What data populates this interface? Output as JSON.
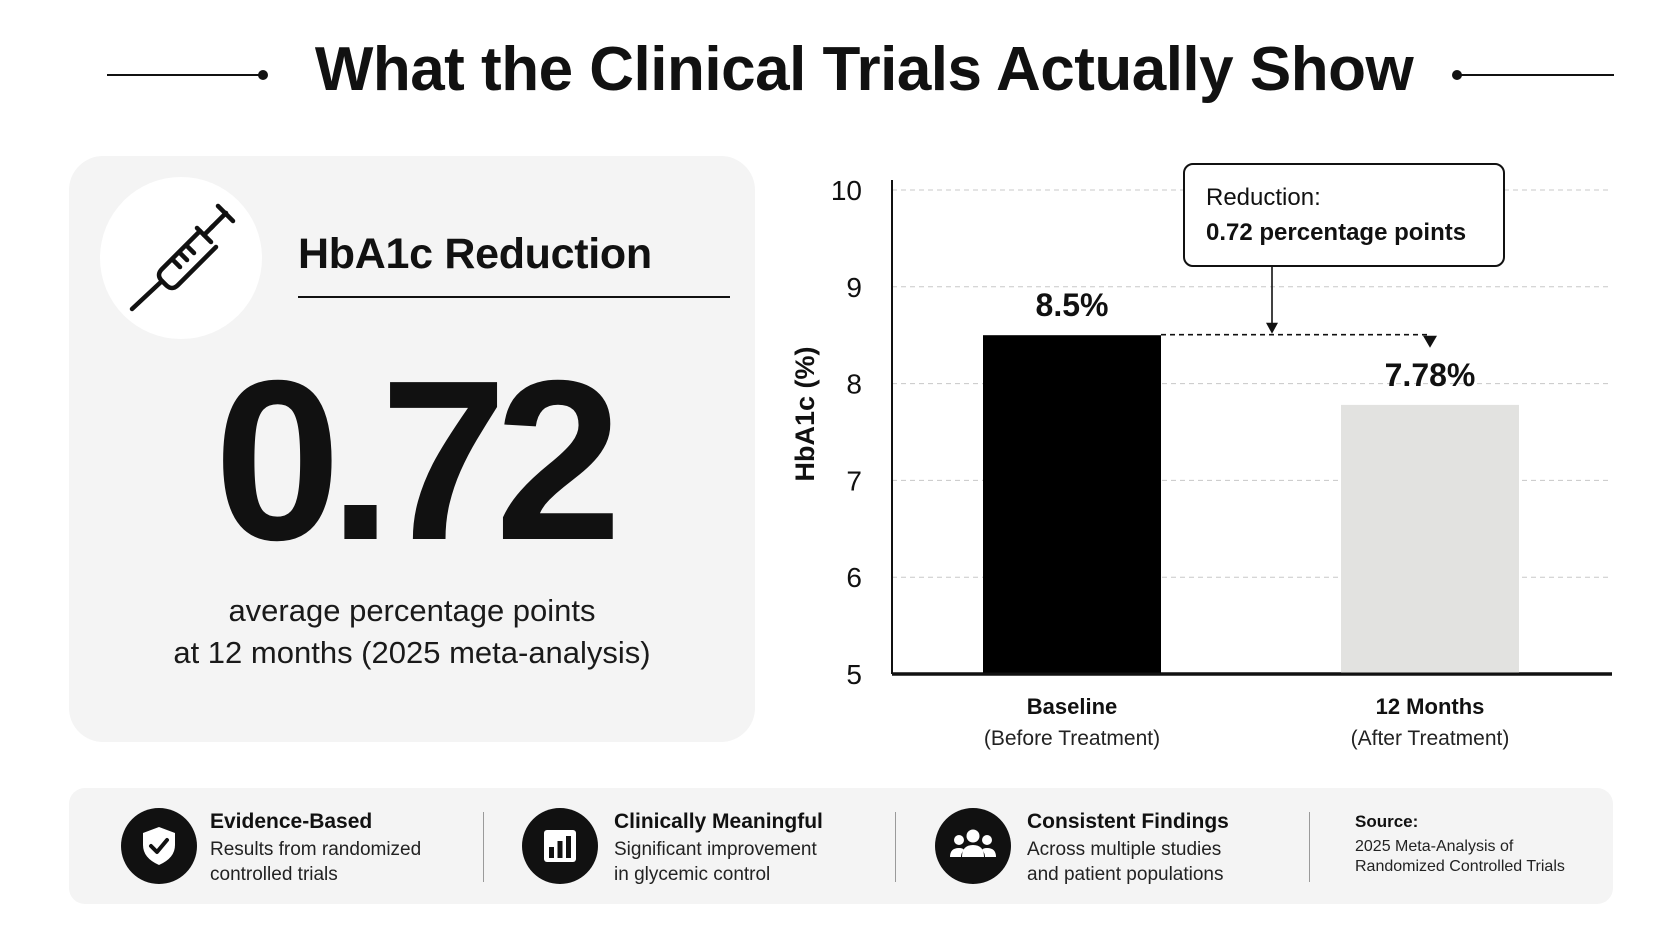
{
  "header": {
    "title": "What the Clinical Trials Actually Show"
  },
  "stat_card": {
    "icon": "syringe-icon",
    "title": "HbA1c Reduction",
    "value": "0.72",
    "caption_line1": "average percentage points",
    "caption_line2": "at 12 months (2025 meta-analysis)"
  },
  "chart_data": {
    "type": "bar",
    "categories": [
      "Baseline",
      "12 Months"
    ],
    "category_sublabels": [
      "(Before Treatment)",
      "(After Treatment)"
    ],
    "values": [
      8.5,
      7.78
    ],
    "value_labels": [
      "8.5%",
      "7.78%"
    ],
    "bar_colors": [
      "#000000",
      "#e2e2e0"
    ],
    "ylabel": "HbA1c (%)",
    "ylim": [
      5,
      10
    ],
    "yticks": [
      5,
      6,
      7,
      8,
      9,
      10
    ],
    "grid": true,
    "annotation": {
      "label": "Reduction:",
      "value": "0.72 percentage points"
    }
  },
  "features": [
    {
      "icon": "shield-check-icon",
      "title": "Evidence-Based",
      "line1": "Results from randomized",
      "line2": "controlled trials"
    },
    {
      "icon": "bar-chart-icon",
      "title": "Clinically Meaningful",
      "line1": "Significant improvement",
      "line2": "in glycemic control"
    },
    {
      "icon": "people-group-icon",
      "title": "Consistent Findings",
      "line1": "Across multiple studies",
      "line2": "and patient populations"
    }
  ],
  "source": {
    "title": "Source:",
    "line1": "2025 Meta-Analysis of",
    "line2": "Randomized Controlled Trials"
  }
}
